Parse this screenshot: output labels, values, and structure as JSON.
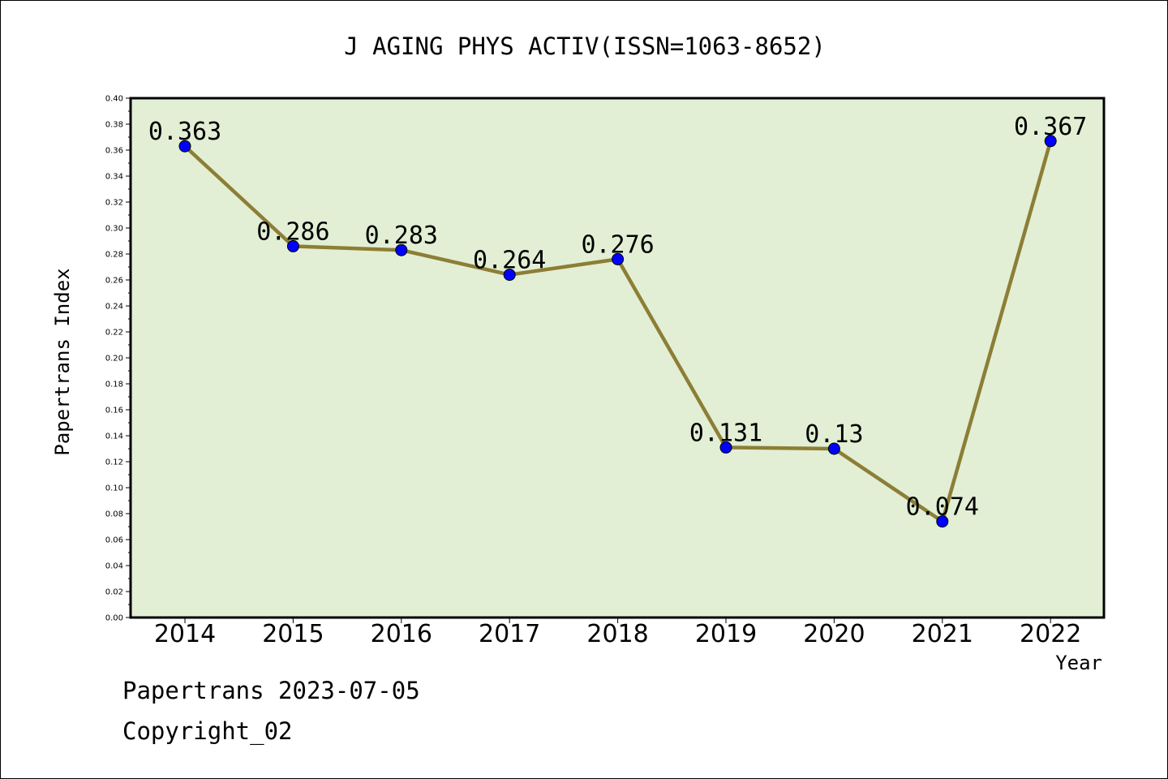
{
  "chart_data": {
    "type": "line",
    "title": "J AGING PHYS ACTIV(ISSN=1063-8652)",
    "xlabel": "Year",
    "ylabel": "Papertrans Index",
    "categories": [
      "2014",
      "2015",
      "2016",
      "2017",
      "2018",
      "2019",
      "2020",
      "2021",
      "2022"
    ],
    "values": [
      0.363,
      0.286,
      0.283,
      0.264,
      0.276,
      0.131,
      0.13,
      0.074,
      0.367
    ],
    "data_labels": [
      "0.363",
      "0.286",
      "0.283",
      "0.264",
      "0.276",
      "0.131",
      "0.13",
      "0.074",
      "0.367"
    ],
    "ylim": [
      0,
      0.4
    ],
    "yticks": [
      "0.00",
      "0.02",
      "0.04",
      "0.06",
      "0.08",
      "0.10",
      "0.12",
      "0.14",
      "0.16",
      "0.18",
      "0.20",
      "0.22",
      "0.24",
      "0.26",
      "0.28",
      "0.30",
      "0.32",
      "0.34",
      "0.36",
      "0.38",
      "0.40"
    ],
    "grid": false,
    "colors": {
      "plot_background": "#e2efd5",
      "line": "#8c7e35",
      "marker": "#0000ff"
    }
  },
  "footer": {
    "line1": "Papertrans 2023-07-05",
    "line2": "Copyright_02"
  }
}
